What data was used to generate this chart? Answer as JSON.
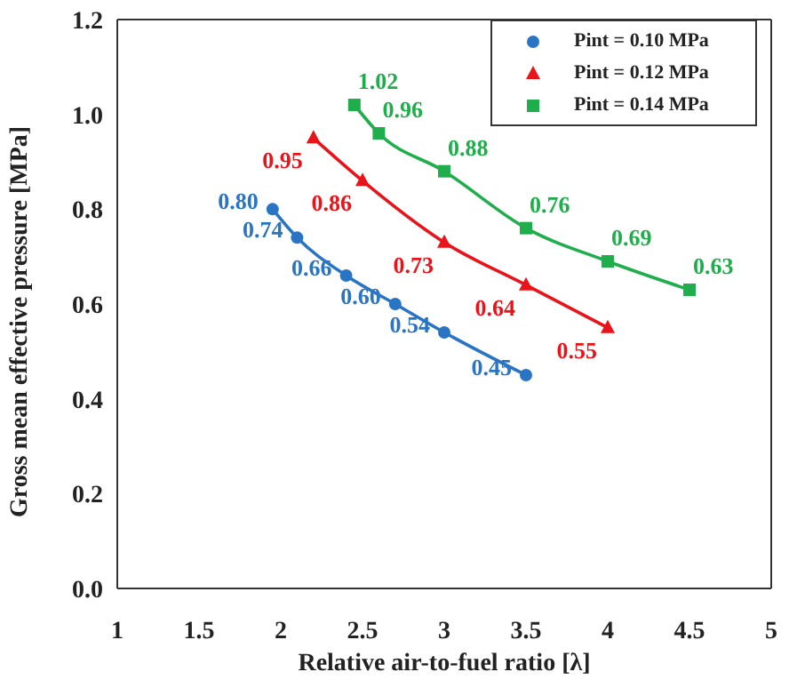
{
  "chart_data": {
    "type": "line",
    "xlabel": "Relative air-to-fuel ratio [λ]",
    "ylabel": "Gross mean effective pressure [MPa]",
    "xlim": [
      1,
      5
    ],
    "xticks": [
      1,
      1.5,
      2,
      2.5,
      3,
      3.5,
      4,
      4.5,
      5
    ],
    "ylim": [
      0,
      1.2
    ],
    "yticks": [
      {
        "value": 0,
        "label": "0.0"
      },
      {
        "value": 0.2,
        "label": "0.2"
      },
      {
        "value": 0.4,
        "label": "0.4"
      },
      {
        "value": 0.6,
        "label": "0.6"
      },
      {
        "value": 0.8,
        "label": "0.8"
      },
      {
        "value": 1,
        "label": "1.0"
      },
      {
        "value": 1.2,
        "label": "1.2"
      }
    ],
    "series": [
      {
        "name": "Pint = 0.10 MPa",
        "color": "#2a74c4",
        "marker": "circle",
        "x": [
          1.95,
          2.1,
          2.4,
          2.7,
          3,
          3.5
        ],
        "values": [
          0.8,
          0.74,
          0.66,
          0.6,
          0.54,
          0.45
        ],
        "value_labels": [
          "0.80",
          "0.74",
          "0.66",
          "0.60",
          "0.54",
          "0.45"
        ]
      },
      {
        "name": "Pint = 0.12 MPa",
        "color": "#e8141a",
        "marker": "triangle",
        "x": [
          2.2,
          2.5,
          3,
          3.5,
          4
        ],
        "values": [
          0.95,
          0.86,
          0.73,
          0.64,
          0.55
        ],
        "value_labels": [
          "0.95",
          "0.86",
          "0.73",
          "0.64",
          "0.55"
        ]
      },
      {
        "name": "Pint = 0.14 MPa",
        "color": "#1fae4b",
        "marker": "square",
        "x": [
          2.45,
          2.6,
          3,
          3.5,
          4,
          4.5
        ],
        "values": [
          1.02,
          0.96,
          0.88,
          0.76,
          0.69,
          0.63
        ],
        "value_labels": [
          "1.02",
          "0.96",
          "0.88",
          "0.76",
          "0.69",
          "0.63"
        ]
      }
    ],
    "legend": "top right",
    "grid": false,
    "line_style": "solid"
  }
}
